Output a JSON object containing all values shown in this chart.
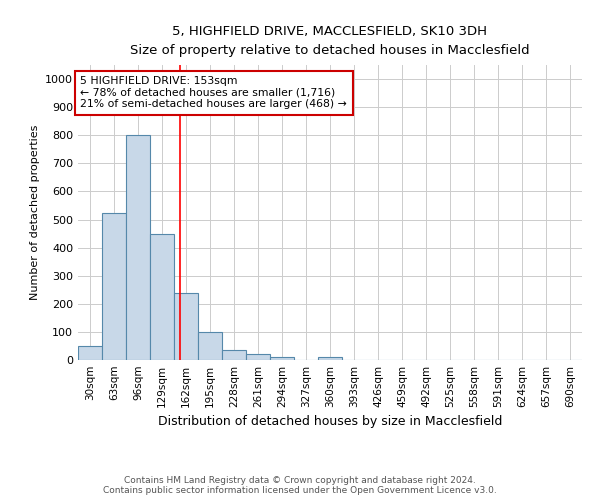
{
  "title_line1": "5, HIGHFIELD DRIVE, MACCLESFIELD, SK10 3DH",
  "title_line2": "Size of property relative to detached houses in Macclesfield",
  "xlabel": "Distribution of detached houses by size in Macclesfield",
  "ylabel": "Number of detached properties",
  "bar_values": [
    50,
    525,
    800,
    450,
    240,
    98,
    35,
    20,
    12,
    0,
    10,
    0,
    0,
    0,
    0,
    0,
    0,
    0,
    0,
    0,
    0
  ],
  "bar_color": "#c8d8e8",
  "bar_edge_color": "#5588aa",
  "x_labels": [
    "30sqm",
    "63sqm",
    "96sqm",
    "129sqm",
    "162sqm",
    "195sqm",
    "228sqm",
    "261sqm",
    "294sqm",
    "327sqm",
    "360sqm",
    "393sqm",
    "426sqm",
    "459sqm",
    "492sqm",
    "525sqm",
    "558sqm",
    "591sqm",
    "624sqm",
    "657sqm",
    "690sqm"
  ],
  "ylim": [
    0,
    1050
  ],
  "yticks": [
    0,
    100,
    200,
    300,
    400,
    500,
    600,
    700,
    800,
    900,
    1000
  ],
  "red_line_x": 3.77,
  "annotation_text": "5 HIGHFIELD DRIVE: 153sqm\n← 78% of detached houses are smaller (1,716)\n21% of semi-detached houses are larger (468) →",
  "annotation_box_color": "#ffffff",
  "annotation_border_color": "#cc0000",
  "footer_text": "Contains HM Land Registry data © Crown copyright and database right 2024.\nContains public sector information licensed under the Open Government Licence v3.0.",
  "background_color": "#ffffff",
  "grid_color": "#cccccc"
}
